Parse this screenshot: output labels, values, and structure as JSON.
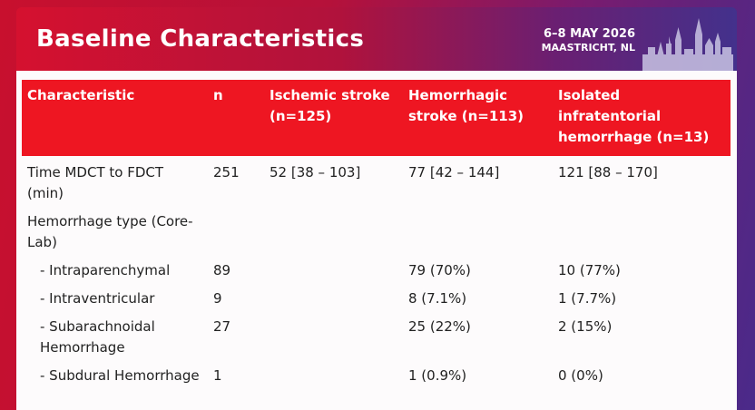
{
  "slide": {
    "title": "Baseline Characteristics",
    "event_date": "6–8 MAY 2026",
    "event_location": "MAASTRICHT, NL"
  },
  "colors": {
    "header_red": "#d5112f",
    "header_purple": "#43318c",
    "table_header": "#ee1622"
  },
  "icons": {
    "logo": "maastricht-skyline-icon"
  },
  "table": {
    "columns": [
      "Characteristic",
      "n",
      "Ischemic stroke (n=125)",
      "Hemorrhagic stroke (n=113)",
      "Isolated infratentorial hemorrhage (n=13)"
    ],
    "rows": [
      {
        "characteristic": "Time MDCT to FDCT (min)",
        "n": "251",
        "ischemic": "52 [38 – 103]",
        "hemorrhagic": "77 [42 – 144]",
        "isolated": "121 [88 – 170]"
      },
      {
        "characteristic": "Hemorrhage type (Core-Lab)",
        "n": "",
        "ischemic": "",
        "hemorrhagic": "",
        "isolated": ""
      },
      {
        "characteristic": "- Intraparenchymal",
        "n": "89",
        "ischemic": "",
        "hemorrhagic": "79 (70%)",
        "isolated": "10 (77%)"
      },
      {
        "characteristic": "- Intraventricular",
        "n": "9",
        "ischemic": "",
        "hemorrhagic": "8 (7.1%)",
        "isolated": "1 (7.7%)"
      },
      {
        "characteristic": "- Subarachnoidal Hemorrhage",
        "n": "27",
        "ischemic": "",
        "hemorrhagic": "25 (22%)",
        "isolated": "2 (15%)"
      },
      {
        "characteristic": "- Subdural Hemorrhage",
        "n": "1",
        "ischemic": "",
        "hemorrhagic": "1 (0.9%)",
        "isolated": "0 (0%)"
      }
    ]
  }
}
